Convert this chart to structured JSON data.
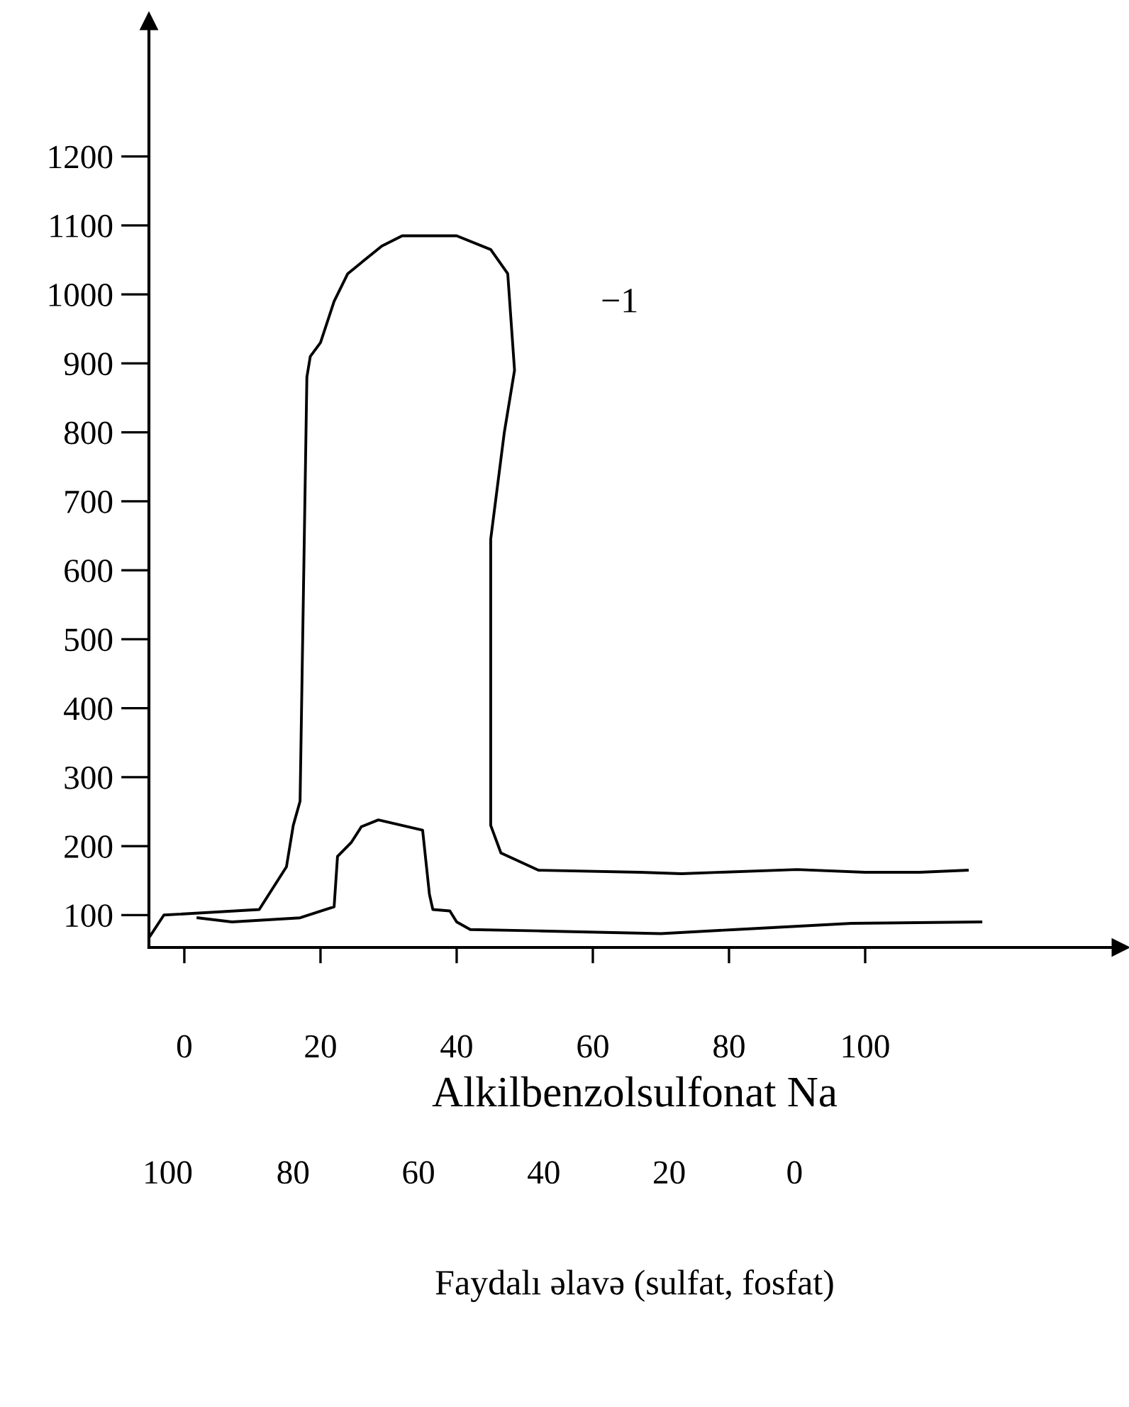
{
  "chart_data": {
    "type": "line",
    "xlabel": "Alkilbenzolsulfonat Na",
    "x2label": "Faydalı əlavə (sulfat, fosfat)",
    "xlim": [
      -5.2,
      137.5
    ],
    "xticks": [
      0,
      20,
      40,
      60,
      80,
      100
    ],
    "x2lim": [
      103,
      -52
    ],
    "x2ticks": [
      100,
      80,
      60,
      40,
      20,
      0
    ],
    "ylim": [
      53,
      1396
    ],
    "yticks": [
      100,
      200,
      300,
      400,
      500,
      600,
      700,
      800,
      900,
      1000,
      1100,
      1200
    ],
    "grid": false,
    "marker": "none",
    "line_style": "solid",
    "annotations": [
      "−1"
    ],
    "series": [
      {
        "color": "#000000",
        "x": [
          -5,
          -3,
          11,
          15,
          16,
          17,
          18,
          18.5,
          20,
          22,
          24,
          29,
          32,
          40,
          45,
          47.5,
          48.5,
          47,
          45,
          45,
          46.5,
          52,
          67,
          73,
          90,
          100,
          108,
          115
        ],
        "values": [
          70,
          100,
          108,
          170,
          230,
          265,
          880,
          910,
          930,
          990,
          1030,
          1070,
          1085,
          1085,
          1065,
          1030,
          890,
          800,
          645,
          230,
          190,
          165,
          162,
          160,
          166,
          162,
          162,
          165
        ]
      },
      {
        "color": "#000000",
        "x": [
          2,
          7,
          17,
          22,
          22.5,
          24.5,
          26,
          28.5,
          35,
          36,
          36.5,
          39,
          40,
          42,
          52,
          70,
          81,
          98,
          117
        ],
        "values": [
          96,
          90,
          96,
          112,
          185,
          205,
          228,
          238,
          223,
          130,
          108,
          106,
          90,
          79,
          77,
          73,
          79,
          88,
          90
        ]
      }
    ]
  }
}
